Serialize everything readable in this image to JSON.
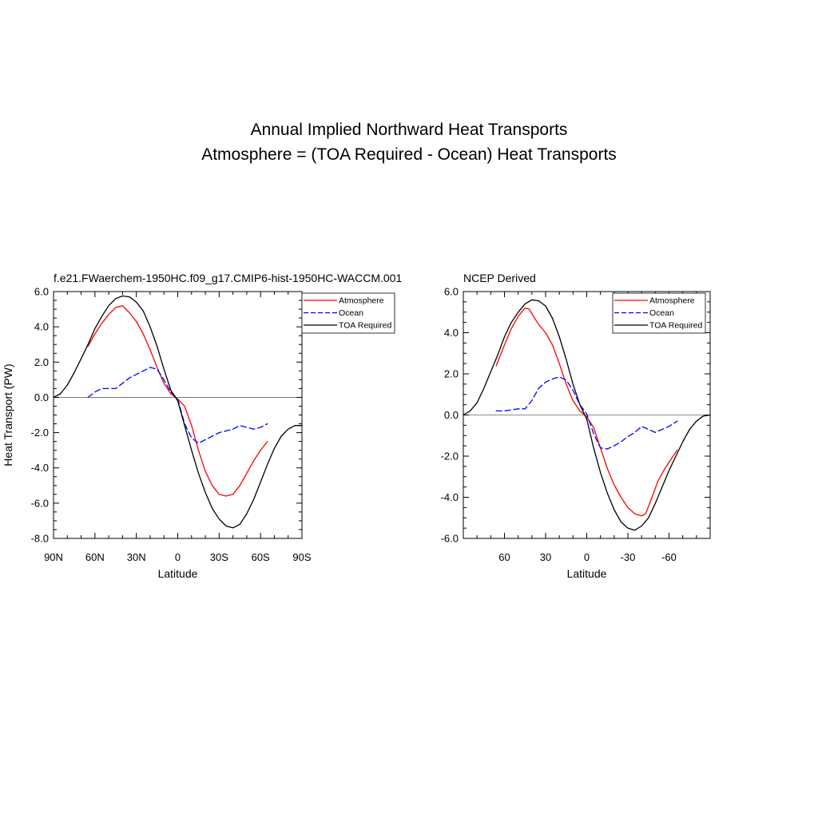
{
  "page": {
    "title_line1": "Annual Implied Northward Heat Transports",
    "title_line2": "Atmosphere = (TOA Required - Ocean) Heat Transports"
  },
  "chart_data": [
    {
      "type": "line",
      "title": "f.e21.FWaerchem-1950HC.f09_g17.CMIP6-hist-1950HC-WACCM.001",
      "xlabel": "Latitude",
      "ylabel": "Heat Transport (PW)",
      "xlim": [
        90,
        -90
      ],
      "ylim": [
        -8,
        6
      ],
      "x_ticks": [
        90,
        60,
        30,
        0,
        -30,
        -60,
        -90
      ],
      "x_tick_labels": [
        "90N",
        "60N",
        "30N",
        "0",
        "30S",
        "60S",
        "90S"
      ],
      "y_ticks": [
        6,
        4,
        2,
        0,
        -2,
        -4,
        -6,
        -8
      ],
      "y_tick_labels": [
        "6.0",
        "4.0",
        "2.0",
        "0.0",
        "-2.0",
        "-4.0",
        "-6.0",
        "-8.0"
      ],
      "legend_position": "top-right-outside",
      "zero_line": true,
      "series": [
        {
          "name": "Atmosphere",
          "color": "#ff0000",
          "dash": "solid",
          "x": [
            65,
            60,
            55,
            50,
            45,
            40,
            35,
            30,
            25,
            20,
            15,
            10,
            5,
            0,
            -5,
            -10,
            -15,
            -20,
            -25,
            -30,
            -35,
            -40,
            -45,
            -50,
            -55,
            -60,
            -65
          ],
          "y": [
            2.9,
            3.6,
            4.2,
            4.7,
            5.1,
            5.2,
            4.8,
            4.3,
            3.6,
            2.7,
            1.7,
            0.8,
            0.2,
            -0.1,
            -0.5,
            -1.6,
            -3.0,
            -4.2,
            -5.0,
            -5.5,
            -5.6,
            -5.5,
            -5.0,
            -4.3,
            -3.6,
            -3.0,
            -2.5
          ]
        },
        {
          "name": "Ocean",
          "color": "#0000ff",
          "dash": "dashed",
          "x": [
            65,
            60,
            55,
            50,
            45,
            40,
            35,
            30,
            25,
            20,
            15,
            10,
            5,
            0,
            -5,
            -10,
            -15,
            -20,
            -25,
            -30,
            -35,
            -40,
            -45,
            -50,
            -55,
            -60,
            -65
          ],
          "y": [
            0.0,
            0.3,
            0.5,
            0.5,
            0.5,
            0.8,
            1.1,
            1.3,
            1.5,
            1.7,
            1.6,
            1.0,
            0.3,
            -0.1,
            -1.5,
            -2.3,
            -2.6,
            -2.4,
            -2.2,
            -2.0,
            -1.9,
            -1.8,
            -1.6,
            -1.7,
            -1.8,
            -1.7,
            -1.5
          ]
        },
        {
          "name": "TOA Required",
          "color": "#000000",
          "dash": "solid",
          "x": [
            90,
            85,
            80,
            75,
            70,
            65,
            60,
            55,
            50,
            45,
            40,
            35,
            30,
            25,
            20,
            15,
            10,
            5,
            0,
            -5,
            -10,
            -15,
            -20,
            -25,
            -30,
            -35,
            -40,
            -45,
            -50,
            -55,
            -60,
            -65,
            -70,
            -75,
            -80,
            -85,
            -90
          ],
          "y": [
            0.0,
            0.2,
            0.7,
            1.4,
            2.2,
            3.0,
            3.9,
            4.6,
            5.2,
            5.6,
            5.75,
            5.7,
            5.4,
            4.9,
            4.0,
            2.9,
            1.6,
            0.4,
            -0.2,
            -1.6,
            -3.0,
            -4.3,
            -5.4,
            -6.3,
            -6.9,
            -7.3,
            -7.4,
            -7.2,
            -6.6,
            -5.8,
            -4.8,
            -3.8,
            -2.9,
            -2.2,
            -1.8,
            -1.6,
            -1.6
          ]
        }
      ]
    },
    {
      "type": "line",
      "title": "NCEP Derived",
      "xlabel": "Latitude",
      "ylabel": "",
      "xlim": [
        90,
        -90
      ],
      "ylim": [
        -6,
        6
      ],
      "x_ticks": [
        60,
        30,
        0,
        -30,
        -60
      ],
      "x_tick_labels": [
        "60",
        "30",
        "0",
        "-30",
        "-60"
      ],
      "y_ticks": [
        6,
        4,
        2,
        0,
        -2,
        -4,
        -6
      ],
      "y_tick_labels": [
        "6.0",
        "4.0",
        "2.0",
        "0.0",
        "-2.0",
        "-4.0",
        "-6.0"
      ],
      "legend_position": "top-right-inside",
      "zero_line": true,
      "series": [
        {
          "name": "Atmosphere",
          "color": "#ff0000",
          "dash": "solid",
          "x": [
            66,
            60,
            55,
            50,
            45,
            42,
            38,
            35,
            30,
            25,
            20,
            15,
            10,
            5,
            0,
            -5,
            -10,
            -15,
            -20,
            -25,
            -30,
            -35,
            -40,
            -43,
            -47,
            -52,
            -57,
            -62,
            -66
          ],
          "y": [
            2.4,
            3.4,
            4.2,
            4.8,
            5.2,
            5.15,
            4.7,
            4.4,
            4.0,
            3.4,
            2.5,
            1.5,
            0.7,
            0.2,
            -0.1,
            -0.6,
            -1.6,
            -2.6,
            -3.4,
            -4.0,
            -4.5,
            -4.8,
            -4.9,
            -4.8,
            -4.1,
            -3.2,
            -2.6,
            -2.1,
            -1.7
          ]
        },
        {
          "name": "Ocean",
          "color": "#0000ff",
          "dash": "dashed",
          "x": [
            66,
            60,
            55,
            50,
            45,
            40,
            35,
            30,
            25,
            20,
            15,
            10,
            5,
            0,
            -5,
            -10,
            -15,
            -20,
            -25,
            -30,
            -35,
            -40,
            -45,
            -50,
            -55,
            -60,
            -66
          ],
          "y": [
            0.2,
            0.2,
            0.25,
            0.3,
            0.3,
            0.7,
            1.3,
            1.6,
            1.75,
            1.85,
            1.7,
            1.2,
            0.5,
            0.05,
            -0.9,
            -1.6,
            -1.65,
            -1.5,
            -1.3,
            -1.05,
            -0.85,
            -0.55,
            -0.7,
            -0.85,
            -0.7,
            -0.55,
            -0.3
          ]
        },
        {
          "name": "TOA Required",
          "color": "#000000",
          "dash": "solid",
          "x": [
            90,
            85,
            80,
            75,
            70,
            65,
            60,
            55,
            50,
            45,
            40,
            35,
            30,
            25,
            20,
            15,
            10,
            5,
            0,
            -5,
            -10,
            -15,
            -20,
            -25,
            -30,
            -35,
            -40,
            -45,
            -50,
            -55,
            -60,
            -65,
            -70,
            -75,
            -80,
            -85,
            -90
          ],
          "y": [
            0.0,
            0.2,
            0.6,
            1.3,
            2.1,
            2.9,
            3.8,
            4.5,
            5.0,
            5.4,
            5.6,
            5.55,
            5.3,
            4.7,
            3.8,
            2.7,
            1.5,
            0.5,
            -0.2,
            -1.6,
            -2.8,
            -3.8,
            -4.6,
            -5.2,
            -5.5,
            -5.6,
            -5.4,
            -5.0,
            -4.3,
            -3.5,
            -2.7,
            -2.0,
            -1.3,
            -0.7,
            -0.3,
            -0.05,
            0.0
          ]
        }
      ]
    }
  ]
}
